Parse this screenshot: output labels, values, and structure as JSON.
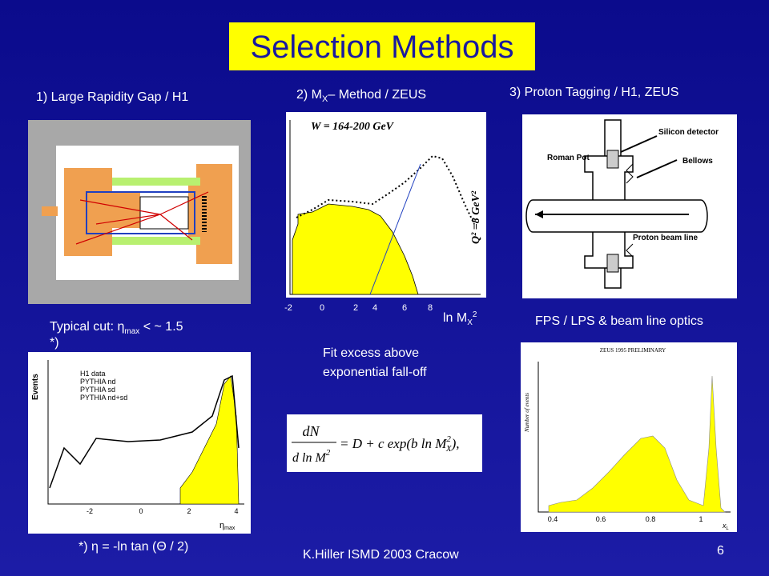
{
  "header": {
    "title": "Selection  Methods"
  },
  "columns": [
    {
      "heading": "1)   Large Rapidity Gap / H1",
      "cut": {
        "prefix": "Typical cut:  η",
        "sub": "max",
        "suffix": "  <  ~ 1.5",
        "note": "*)"
      },
      "plot": {
        "y_label": "Events",
        "x_label": "η",
        "x_label_sub": "max",
        "legend": [
          "H1 data",
          "PYTHIA nd",
          "PYTHIA sd",
          "PYTHIA nd+sd"
        ],
        "xticks": [
          "-2",
          "0",
          "2",
          "4"
        ]
      },
      "footnote": "*)  η  = -ln tan (Θ / 2)"
    },
    {
      "heading": {
        "prefix": "2)  M",
        "sub": "X",
        "suffix": "– Method / ZEUS"
      },
      "plot": {
        "title": "W = 164-200 GeV",
        "side_label": "Q² =8 GeV²",
        "xticks": [
          "-2",
          "0",
          "2",
          "4",
          "6",
          "8"
        ],
        "x_label": {
          "prefix": "ln M",
          "sub": "X",
          "sup": "2"
        }
      },
      "caption": [
        "Fit excess above",
        "exponential fall-off"
      ],
      "formula": {
        "lhs_num": "dN",
        "lhs_den": "d ln M",
        "rhs": "= D + c exp(b ln M",
        "sub": "X",
        "sup": "2",
        "end": "),"
      }
    },
    {
      "heading": "3)  Proton Tagging / H1, ZEUS",
      "diagram": {
        "labels": [
          "Silicon detector",
          "Roman Pot",
          "Bellows",
          "Proton beam line"
        ]
      },
      "caption": "FPS / LPS &  beam line optics",
      "plot": {
        "title": "ZEUS 1995 PRELIMINARY",
        "y_label": "Number of events",
        "xticks": [
          "0.4",
          "0.6",
          "0.8",
          "1"
        ],
        "x_label": "x",
        "x_label_sub": "L"
      }
    }
  ],
  "footer": {
    "text": "K.Hiller ISMD 2003   Cracow",
    "page": "6"
  }
}
